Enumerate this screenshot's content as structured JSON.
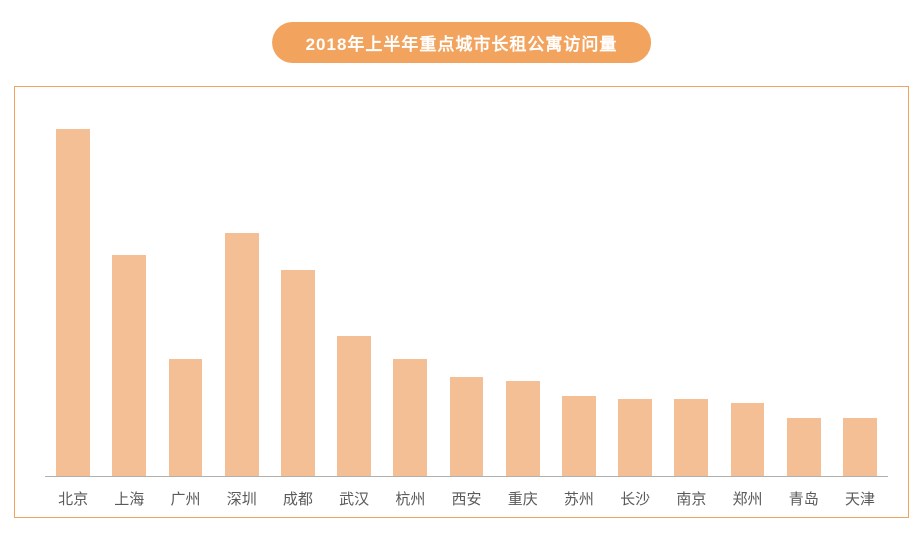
{
  "chart": {
    "type": "bar",
    "title": "2018年上半年重点城市长租公寓访问量",
    "title_fontsize": 17,
    "title_color": "#ffffff",
    "title_bg": "#f2a35e",
    "frame_border_color": "#f2a35e",
    "background_color": "#ffffff",
    "bar_color": "#f4bf94",
    "axis_line_color": "#b0b0b0",
    "xlabel_fontsize": 15,
    "xlabel_color": "#5a5a5a",
    "ylim": [
      0,
      100
    ],
    "bar_width_ratio": 0.6,
    "categories": [
      "北京",
      "上海",
      "广州",
      "深圳",
      "成都",
      "武汉",
      "杭州",
      "西安",
      "重庆",
      "苏州",
      "长沙",
      "南京",
      "郑州",
      "青岛",
      "天津"
    ],
    "values": [
      94,
      60,
      32,
      66,
      56,
      38,
      32,
      27,
      26,
      22,
      21,
      21,
      20,
      16,
      16
    ]
  }
}
